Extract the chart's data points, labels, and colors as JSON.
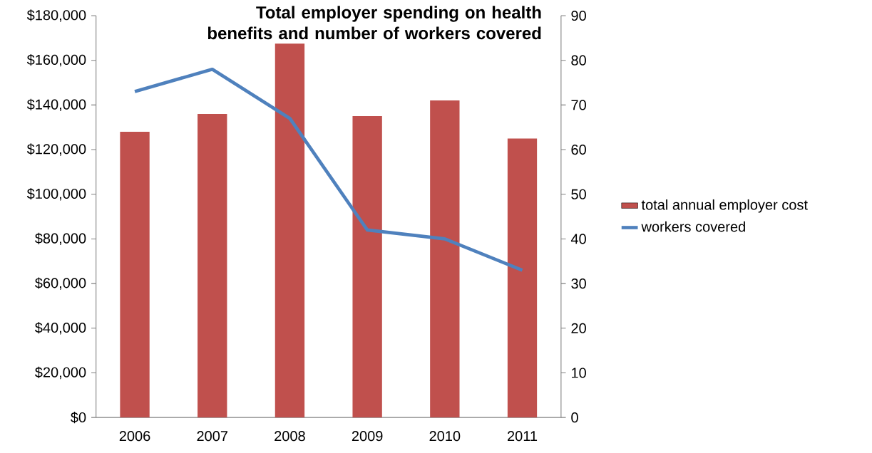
{
  "chart_data": {
    "type": "bar",
    "title": "Total employer spending on health benefits and number of workers covered",
    "categories": [
      "2006",
      "2007",
      "2008",
      "2009",
      "2010",
      "2011"
    ],
    "series": [
      {
        "name": "total annual employer cost",
        "color": "#c0504d",
        "values": [
          128000,
          136000,
          167500,
          135000,
          142000,
          125000
        ]
      },
      {
        "name": "workers covered",
        "type": "line",
        "axis": "y2",
        "color": "#4f81bd",
        "values": [
          73,
          78,
          67,
          42,
          40,
          33
        ]
      }
    ],
    "ylim": [
      0,
      180000
    ],
    "yticks": [
      {
        "value": 0,
        "label": "$0"
      },
      {
        "value": 20000,
        "label": "$20,000"
      },
      {
        "value": 40000,
        "label": "$40,000"
      },
      {
        "value": 60000,
        "label": "$60,000"
      },
      {
        "value": 80000,
        "label": "$80,000"
      },
      {
        "value": 100000,
        "label": "$100,000"
      },
      {
        "value": 120000,
        "label": "$120,000"
      },
      {
        "value": 140000,
        "label": "$140,000"
      },
      {
        "value": 160000,
        "label": "$160,000"
      },
      {
        "value": 180000,
        "label": "$180,000"
      }
    ],
    "y2lim": [
      0,
      90
    ],
    "y2ticks": [
      0,
      10,
      20,
      30,
      40,
      50,
      60,
      70,
      80,
      90
    ],
    "legend": "right",
    "marker": "none",
    "line_style": "solid"
  }
}
